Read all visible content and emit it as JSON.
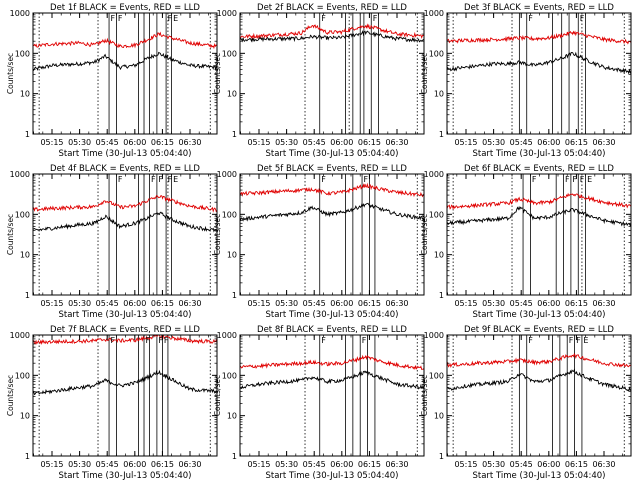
{
  "page": {
    "background": "#ffffff"
  },
  "colors": {
    "black_series": "#000000",
    "red_series": "#e00000",
    "axis": "#000000"
  },
  "shared_axes": {
    "ylabel": "Counts/sec",
    "xlabel": "Start Time (30-Jul-13 05:04:40)",
    "x_ticks": [
      "05:15",
      "05:30",
      "05:45",
      "06:00",
      "06:15",
      "06:30"
    ],
    "y_ticks": [
      "1",
      "10",
      "100",
      "1000"
    ],
    "x_range": [
      "05:04:40",
      "06:44:40"
    ],
    "y_range": [
      1,
      1000
    ],
    "y_scale": "log",
    "flag_label": "F",
    "flag_label_2": "E"
  },
  "chart_data": [
    {
      "type": "line",
      "title": "Det 1f BLACK = Events, RED = LLD",
      "xlabel": "Start Time (30-Jul-13 05:04:40)",
      "ylabel": "Counts/sec",
      "yscale": "log",
      "ylim": [
        1,
        1000
      ],
      "series": [
        {
          "name": "BLACK = Events",
          "color": "#000000",
          "x": [
            "05:05",
            "05:15",
            "05:30",
            "05:38",
            "05:44",
            "05:52",
            "06:00",
            "06:07",
            "06:13",
            "06:20",
            "06:30",
            "06:44"
          ],
          "values": [
            40,
            50,
            55,
            60,
            85,
            45,
            50,
            75,
            100,
            70,
            50,
            45
          ]
        },
        {
          "name": "RED = LLD",
          "color": "#e00000",
          "x": [
            "05:05",
            "05:15",
            "05:30",
            "05:38",
            "05:44",
            "05:52",
            "06:00",
            "06:07",
            "06:13",
            "06:20",
            "06:30",
            "06:44"
          ],
          "values": [
            150,
            170,
            180,
            160,
            210,
            150,
            160,
            220,
            300,
            240,
            180,
            150
          ]
        }
      ],
      "solid_vlines": [
        "05:46",
        "05:50",
        "06:02",
        "06:05",
        "06:08",
        "06:12",
        "06:17",
        "06:20"
      ],
      "dotted_vlines": [
        "05:08",
        "05:40",
        "06:18",
        "06:41"
      ],
      "flags": [
        {
          "x": "05:46",
          "label": "F"
        },
        {
          "x": "05:50",
          "label": "F"
        },
        {
          "x": "06:17",
          "label": "F"
        },
        {
          "x": "06:20",
          "label": "E"
        }
      ]
    },
    {
      "type": "line",
      "title": "Det 2f BLACK = Events, RED = LLD",
      "xlabel": "Start Time (30-Jul-13 05:04:40)",
      "ylabel": "Counts/sec",
      "yscale": "log",
      "ylim": [
        1,
        1000
      ],
      "series": [
        {
          "name": "BLACK = Events",
          "color": "#000000",
          "x": [
            "05:05",
            "05:15",
            "05:30",
            "05:38",
            "05:44",
            "05:52",
            "06:00",
            "06:07",
            "06:13",
            "06:20",
            "06:30",
            "06:44"
          ],
          "values": [
            220,
            225,
            230,
            235,
            260,
            240,
            245,
            290,
            330,
            280,
            230,
            210
          ]
        },
        {
          "name": "RED = LLD",
          "color": "#e00000",
          "x": [
            "05:05",
            "05:15",
            "05:30",
            "05:38",
            "05:44",
            "05:52",
            "06:00",
            "06:07",
            "06:13",
            "06:20",
            "06:30",
            "06:44"
          ],
          "values": [
            260,
            270,
            300,
            320,
            500,
            330,
            340,
            420,
            480,
            400,
            300,
            270
          ]
        }
      ],
      "solid_vlines": [
        "05:48",
        "06:02",
        "06:06",
        "06:10",
        "06:12",
        "06:16",
        "06:20"
      ],
      "dotted_vlines": [
        "05:40",
        "06:04",
        "06:41"
      ],
      "flags": [
        {
          "x": "05:48",
          "label": "F"
        },
        {
          "x": "06:16",
          "label": "F"
        }
      ]
    },
    {
      "type": "line",
      "title": "Det 3f BLACK = Events, RED = LLD",
      "xlabel": "Start Time (30-Jul-13 05:04:40)",
      "ylabel": "Counts/sec",
      "yscale": "log",
      "ylim": [
        1,
        1000
      ],
      "series": [
        {
          "name": "BLACK = Events",
          "color": "#000000",
          "x": [
            "05:05",
            "05:15",
            "05:30",
            "05:38",
            "05:44",
            "05:52",
            "06:00",
            "06:07",
            "06:13",
            "06:20",
            "06:30",
            "06:44"
          ],
          "values": [
            40,
            45,
            55,
            55,
            60,
            50,
            60,
            75,
            100,
            70,
            45,
            35
          ]
        },
        {
          "name": "RED = LLD",
          "color": "#e00000",
          "x": [
            "05:05",
            "05:15",
            "05:30",
            "05:38",
            "05:44",
            "05:52",
            "06:00",
            "06:07",
            "06:13",
            "06:20",
            "06:30",
            "06:44"
          ],
          "values": [
            200,
            210,
            220,
            230,
            240,
            230,
            240,
            280,
            330,
            280,
            220,
            190
          ]
        }
      ],
      "solid_vlines": [
        "05:44",
        "05:48",
        "06:02",
        "06:07",
        "06:11",
        "06:16",
        "06:20"
      ],
      "dotted_vlines": [
        "05:08",
        "05:40",
        "06:18",
        "06:41"
      ],
      "flags": [
        {
          "x": "05:48",
          "label": "F"
        },
        {
          "x": "06:16",
          "label": "F"
        }
      ]
    },
    {
      "type": "line",
      "title": "Det 4f BLACK = Events, RED = LLD",
      "xlabel": "Start Time (30-Jul-13 05:04:40)",
      "ylabel": "Counts/sec",
      "yscale": "log",
      "ylim": [
        1,
        1000
      ],
      "series": [
        {
          "name": "BLACK = Events",
          "color": "#000000",
          "x": [
            "05:05",
            "05:15",
            "05:30",
            "05:38",
            "05:44",
            "05:52",
            "06:00",
            "06:07",
            "06:13",
            "06:20",
            "06:30",
            "06:44"
          ],
          "values": [
            40,
            45,
            55,
            60,
            90,
            50,
            60,
            80,
            110,
            75,
            50,
            40
          ]
        },
        {
          "name": "RED = LLD",
          "color": "#e00000",
          "x": [
            "05:05",
            "05:15",
            "05:30",
            "05:38",
            "05:44",
            "05:52",
            "06:00",
            "06:07",
            "06:13",
            "06:20",
            "06:30",
            "06:44"
          ],
          "values": [
            130,
            140,
            150,
            155,
            220,
            150,
            160,
            220,
            280,
            220,
            160,
            130
          ]
        }
      ],
      "solid_vlines": [
        "05:46",
        "05:50",
        "06:02",
        "06:05",
        "06:08",
        "06:12",
        "06:17",
        "06:20"
      ],
      "dotted_vlines": [
        "05:08",
        "05:40",
        "06:18",
        "06:41"
      ],
      "flags": [
        {
          "x": "05:50",
          "label": "F"
        },
        {
          "x": "06:08",
          "label": "F"
        },
        {
          "x": "06:12",
          "label": "F"
        },
        {
          "x": "06:17",
          "label": "F"
        },
        {
          "x": "06:20",
          "label": "E"
        }
      ]
    },
    {
      "type": "line",
      "title": "Det 5f BLACK = Events, RED = LLD",
      "xlabel": "Start Time (30-Jul-13 05:04:40)",
      "ylabel": "Counts/sec",
      "yscale": "log",
      "ylim": [
        1,
        1000
      ],
      "series": [
        {
          "name": "BLACK = Events",
          "color": "#000000",
          "x": [
            "05:05",
            "05:15",
            "05:30",
            "05:38",
            "05:44",
            "05:52",
            "06:00",
            "06:07",
            "06:13",
            "06:20",
            "06:30",
            "06:44"
          ],
          "values": [
            75,
            85,
            100,
            110,
            150,
            100,
            110,
            140,
            180,
            140,
            100,
            80
          ]
        },
        {
          "name": "RED = LLD",
          "color": "#e00000",
          "x": [
            "05:05",
            "05:15",
            "05:30",
            "05:38",
            "05:44",
            "05:52",
            "06:00",
            "06:07",
            "06:13",
            "06:20",
            "06:30",
            "06:44"
          ],
          "values": [
            320,
            340,
            380,
            400,
            420,
            330,
            350,
            430,
            520,
            430,
            350,
            300
          ]
        }
      ],
      "solid_vlines": [
        "05:48",
        "06:02",
        "06:06",
        "06:11",
        "06:15",
        "06:18"
      ],
      "dotted_vlines": [
        "05:40",
        "06:41"
      ],
      "flags": [
        {
          "x": "05:48",
          "label": "F"
        },
        {
          "x": "06:11",
          "label": "F"
        }
      ]
    },
    {
      "type": "line",
      "title": "Det 6f BLACK = Events, RED = LLD",
      "xlabel": "Start Time (30-Jul-13 05:04:40)",
      "ylabel": "Counts/sec",
      "yscale": "log",
      "ylim": [
        1,
        1000
      ],
      "series": [
        {
          "name": "BLACK = Events",
          "color": "#000000",
          "x": [
            "05:05",
            "05:15",
            "05:30",
            "05:38",
            "05:44",
            "05:52",
            "06:00",
            "06:07",
            "06:13",
            "06:20",
            "06:30",
            "06:44"
          ],
          "values": [
            60,
            65,
            75,
            80,
            150,
            80,
            85,
            110,
            130,
            100,
            70,
            55
          ]
        },
        {
          "name": "RED = LLD",
          "color": "#e00000",
          "x": [
            "05:05",
            "05:15",
            "05:30",
            "05:38",
            "05:44",
            "05:52",
            "06:00",
            "06:07",
            "06:13",
            "06:20",
            "06:30",
            "06:44"
          ],
          "values": [
            150,
            160,
            180,
            190,
            240,
            190,
            200,
            260,
            320,
            260,
            200,
            160
          ]
        }
      ],
      "solid_vlines": [
        "05:46",
        "05:50",
        "06:04",
        "06:08",
        "06:12",
        "06:16",
        "06:20"
      ],
      "dotted_vlines": [
        "05:08",
        "05:40",
        "06:18",
        "06:41"
      ],
      "flags": [
        {
          "x": "05:50",
          "label": "F"
        },
        {
          "x": "06:08",
          "label": "F"
        },
        {
          "x": "06:12",
          "label": "F"
        },
        {
          "x": "06:16",
          "label": "F"
        },
        {
          "x": "06:20",
          "label": "E"
        }
      ]
    },
    {
      "type": "line",
      "title": "Det 7f BLACK = Events, RED = LLD",
      "xlabel": "Start Time (30-Jul-13 05:04:40)",
      "ylabel": "Counts/sec",
      "yscale": "log",
      "ylim": [
        1,
        1000
      ],
      "series": [
        {
          "name": "BLACK = Events",
          "color": "#000000",
          "x": [
            "05:05",
            "05:15",
            "05:30",
            "05:38",
            "05:44",
            "05:52",
            "06:00",
            "06:07",
            "06:13",
            "06:20",
            "06:30",
            "06:44"
          ],
          "values": [
            35,
            40,
            50,
            55,
            75,
            55,
            65,
            90,
            120,
            80,
            45,
            40
          ]
        },
        {
          "name": "RED = LLD",
          "color": "#e00000",
          "x": [
            "05:05",
            "05:15",
            "05:30",
            "05:38",
            "05:44",
            "05:52",
            "06:00",
            "06:07",
            "06:13",
            "06:20",
            "06:30",
            "06:44"
          ],
          "values": [
            650,
            680,
            700,
            720,
            780,
            720,
            750,
            850,
            950,
            850,
            720,
            680
          ]
        }
      ],
      "solid_vlines": [
        "05:46",
        "05:50",
        "06:02",
        "06:05",
        "06:08",
        "06:12",
        "06:15",
        "06:18"
      ],
      "dotted_vlines": [
        "05:08",
        "05:40",
        "06:41"
      ],
      "flags": [
        {
          "x": "05:46",
          "label": "F"
        },
        {
          "x": "06:05",
          "label": "F"
        },
        {
          "x": "06:12",
          "label": "F"
        },
        {
          "x": "06:15",
          "label": "F"
        }
      ]
    },
    {
      "type": "line",
      "title": "Det 8f BLACK = Events, RED = LLD",
      "xlabel": "Start Time (30-Jul-13 05:04:40)",
      "ylabel": "Counts/sec",
      "yscale": "log",
      "ylim": [
        1,
        1000
      ],
      "series": [
        {
          "name": "BLACK = Events",
          "color": "#000000",
          "x": [
            "05:05",
            "05:15",
            "05:30",
            "05:38",
            "05:44",
            "05:52",
            "06:00",
            "06:07",
            "06:13",
            "06:20",
            "06:30",
            "06:44"
          ],
          "values": [
            50,
            60,
            70,
            75,
            90,
            70,
            75,
            95,
            120,
            90,
            60,
            50
          ]
        },
        {
          "name": "RED = LLD",
          "color": "#e00000",
          "x": [
            "05:05",
            "05:15",
            "05:30",
            "05:38",
            "05:44",
            "05:52",
            "06:00",
            "06:07",
            "06:13",
            "06:20",
            "06:30",
            "06:44"
          ],
          "values": [
            160,
            170,
            190,
            200,
            210,
            190,
            200,
            240,
            290,
            230,
            180,
            150
          ]
        }
      ],
      "solid_vlines": [
        "05:48",
        "06:02",
        "06:06",
        "06:10",
        "06:14",
        "06:18"
      ],
      "dotted_vlines": [
        "05:40",
        "06:41"
      ],
      "flags": [
        {
          "x": "05:48",
          "label": "F"
        },
        {
          "x": "06:10",
          "label": "F"
        }
      ]
    },
    {
      "type": "line",
      "title": "Det 9f BLACK = Events, RED = LLD",
      "xlabel": "Start Time (30-Jul-13 05:04:40)",
      "ylabel": "Counts/sec",
      "yscale": "log",
      "ylim": [
        1,
        1000
      ],
      "series": [
        {
          "name": "BLACK = Events",
          "color": "#000000",
          "x": [
            "05:05",
            "05:15",
            "05:30",
            "05:38",
            "05:44",
            "05:52",
            "06:00",
            "06:07",
            "06:13",
            "06:20",
            "06:30",
            "06:44"
          ],
          "values": [
            45,
            55,
            65,
            70,
            110,
            70,
            75,
            100,
            130,
            90,
            60,
            45
          ]
        },
        {
          "name": "RED = LLD",
          "color": "#e00000",
          "x": [
            "05:05",
            "05:15",
            "05:30",
            "05:38",
            "05:44",
            "05:52",
            "06:00",
            "06:07",
            "06:13",
            "06:20",
            "06:30",
            "06:44"
          ],
          "values": [
            180,
            190,
            210,
            220,
            240,
            210,
            220,
            270,
            320,
            260,
            200,
            170
          ]
        }
      ],
      "solid_vlines": [
        "05:44",
        "05:48",
        "06:02",
        "06:06",
        "06:10",
        "06:14",
        "06:18"
      ],
      "dotted_vlines": [
        "05:08",
        "05:40",
        "06:41"
      ],
      "flags": [
        {
          "x": "05:48",
          "label": "F"
        },
        {
          "x": "06:10",
          "label": "F"
        },
        {
          "x": "06:14",
          "label": "F"
        },
        {
          "x": "06:18",
          "label": "E"
        }
      ]
    }
  ]
}
